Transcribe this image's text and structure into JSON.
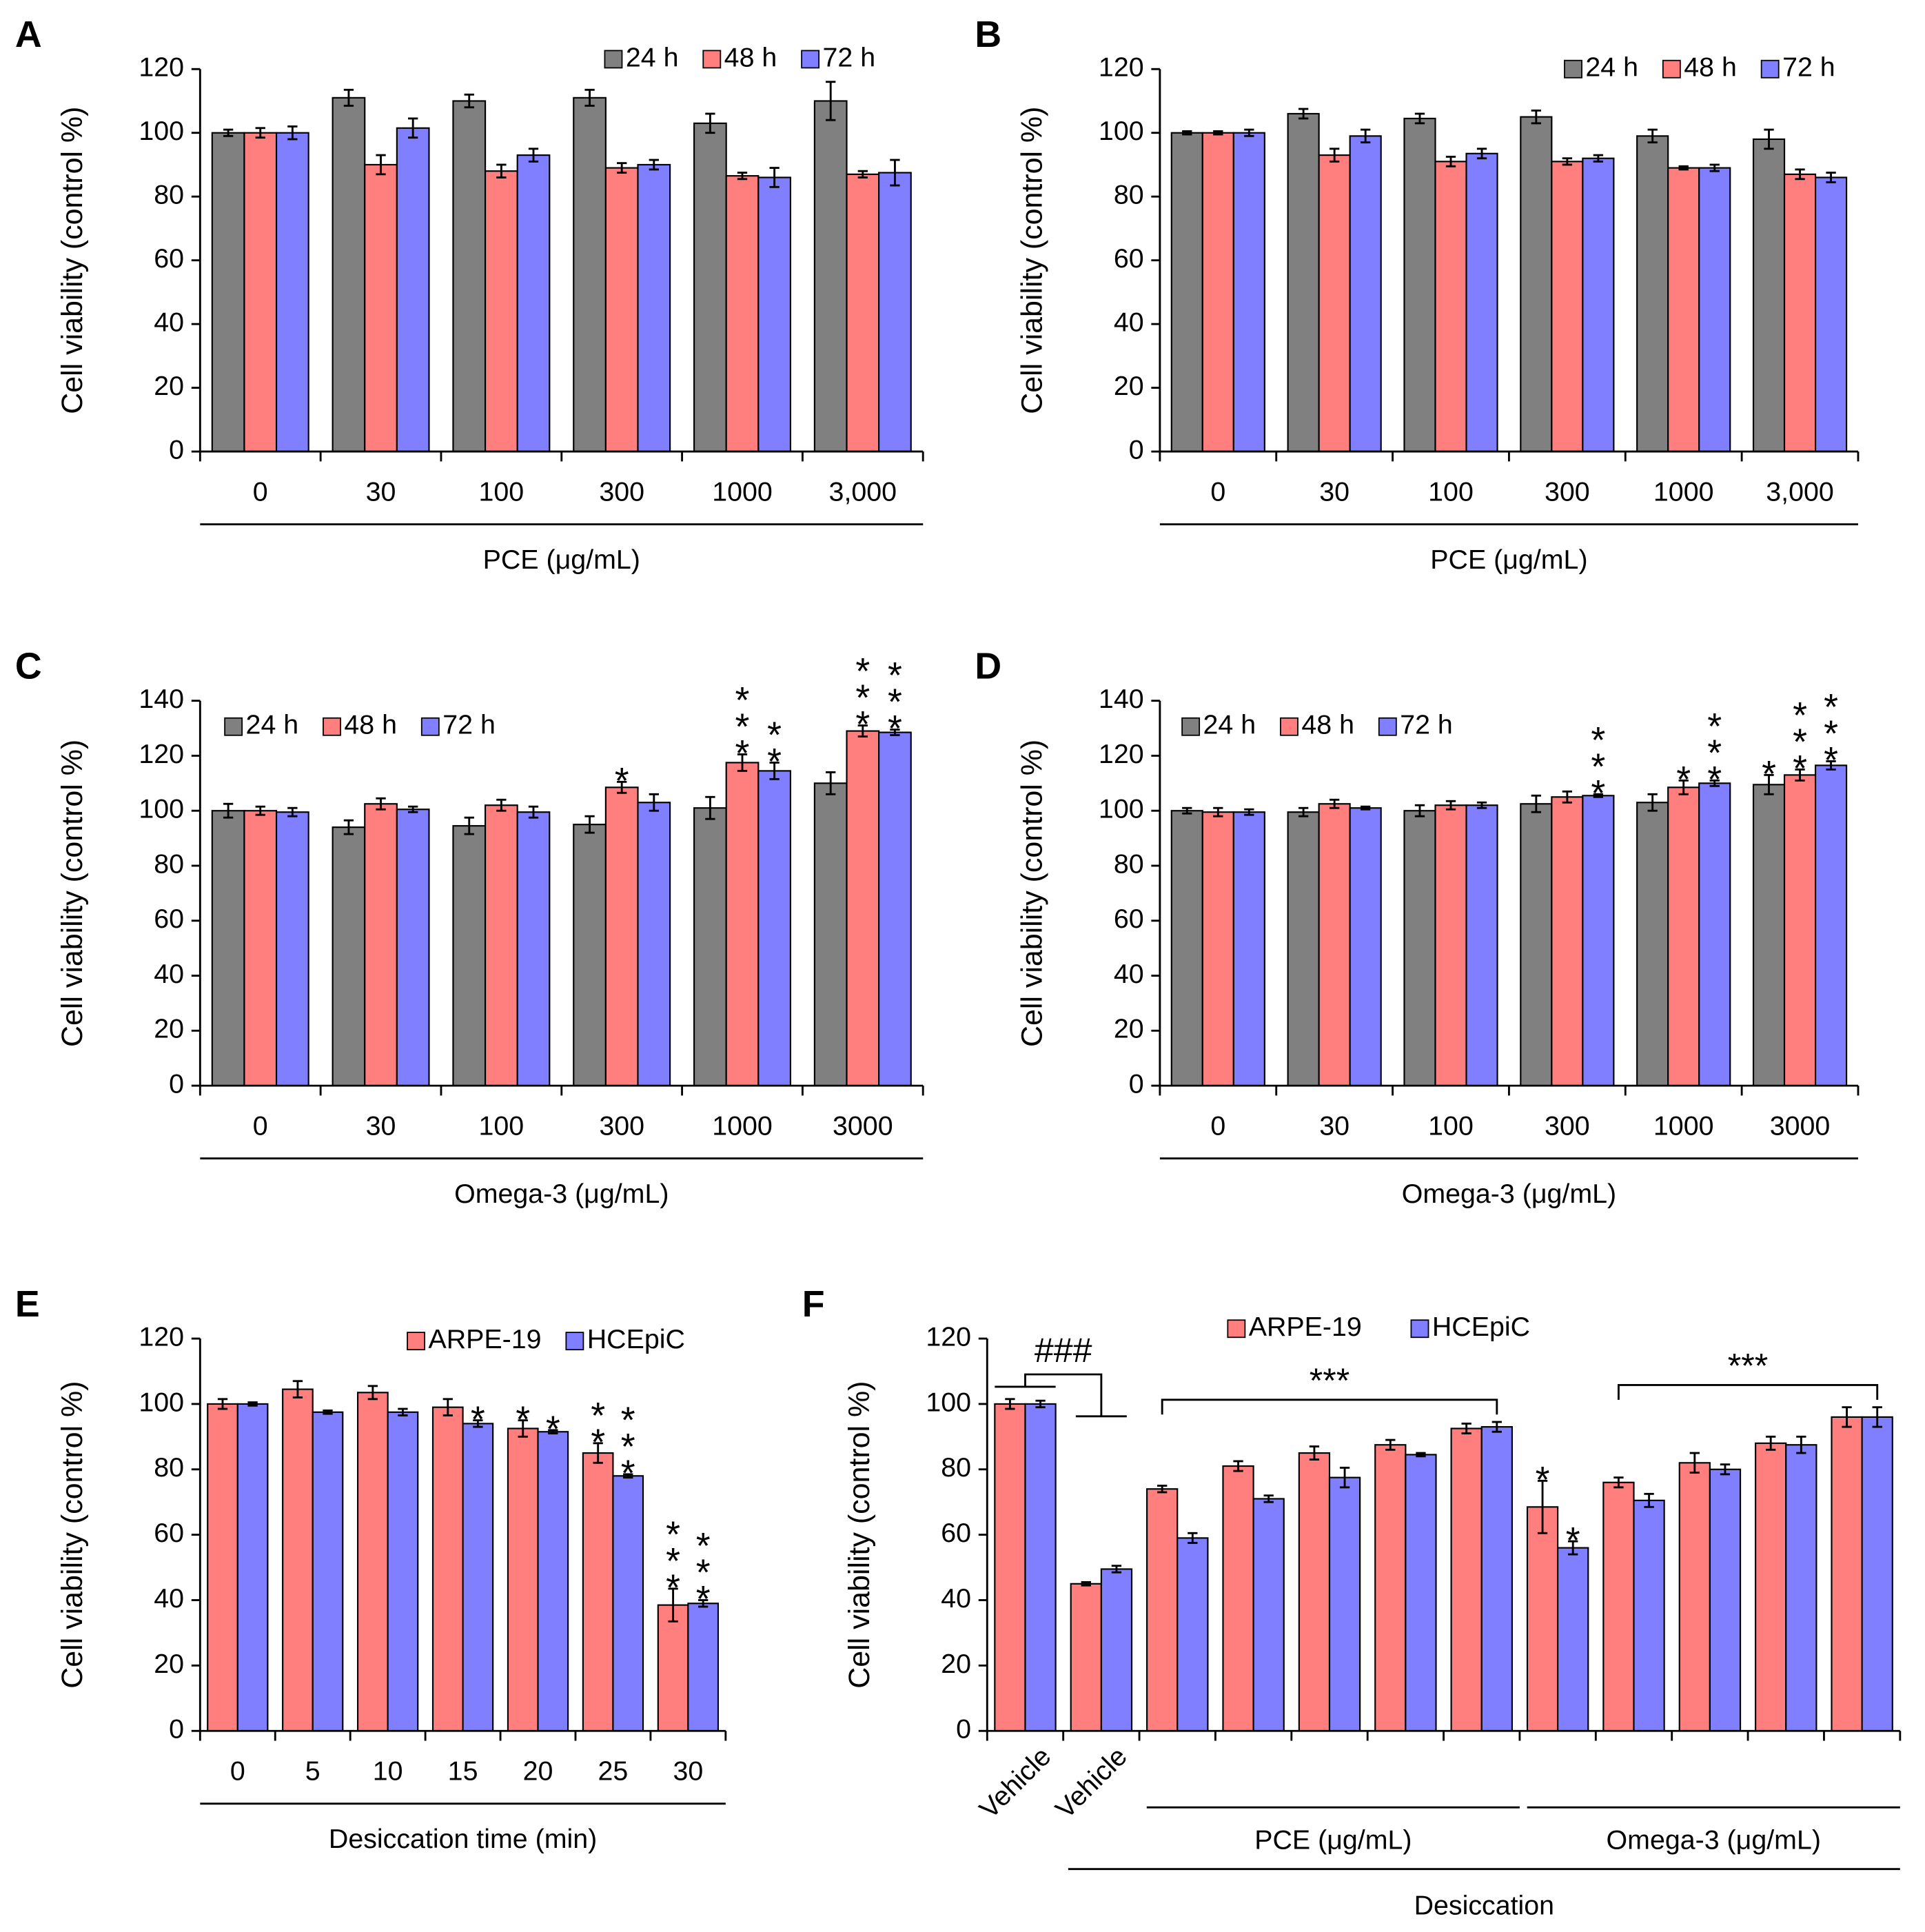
{
  "chart_data": [
    {
      "type": "bar",
      "panel": "A",
      "ylabel": "Cell viability (control %)",
      "xlabel": "PCE (μg/mL)",
      "legend": "upper right",
      "categories": [
        "0",
        "30",
        "100",
        "300",
        "1000",
        "3,000"
      ],
      "ylim": [
        0,
        120
      ],
      "yticks": [
        0,
        20,
        40,
        60,
        80,
        100,
        120
      ],
      "series": [
        {
          "name": "24 h",
          "color": "#808080",
          "values": [
            100,
            111,
            110,
            111,
            103,
            110
          ],
          "errors": [
            1,
            2.5,
            2,
            2.5,
            3,
            6
          ],
          "annotations": [
            null,
            null,
            null,
            null,
            null,
            null
          ]
        },
        {
          "name": "48 h",
          "color": "#ff7f7f",
          "values": [
            100,
            90,
            88,
            89,
            86.5,
            87
          ],
          "errors": [
            1.5,
            3,
            2,
            1.5,
            1,
            1
          ],
          "annotations": [
            null,
            null,
            null,
            null,
            null,
            null
          ]
        },
        {
          "name": "72 h",
          "color": "#7f7fff",
          "values": [
            100,
            101.5,
            93,
            90,
            86,
            87.5
          ],
          "errors": [
            2,
            3,
            2,
            1.5,
            3,
            4
          ],
          "annotations": [
            null,
            null,
            null,
            null,
            null,
            null
          ]
        }
      ]
    },
    {
      "type": "bar",
      "panel": "B",
      "ylabel": "Cell viability (control %)",
      "xlabel": "PCE (μg/mL)",
      "legend": "upper right",
      "categories": [
        "0",
        "30",
        "100",
        "300",
        "1000",
        "3,000"
      ],
      "ylim": [
        0,
        120
      ],
      "yticks": [
        0,
        20,
        40,
        60,
        80,
        100,
        120
      ],
      "series": [
        {
          "name": "24 h",
          "color": "#808080",
          "values": [
            100,
            106,
            104.5,
            105,
            99,
            98
          ],
          "errors": [
            0.5,
            1.5,
            1.5,
            2,
            2,
            3
          ],
          "annotations": [
            null,
            null,
            null,
            null,
            null,
            null
          ]
        },
        {
          "name": "48 h",
          "color": "#ff7f7f",
          "values": [
            100,
            93,
            91,
            91,
            89,
            87
          ],
          "errors": [
            0.5,
            2,
            1.5,
            1,
            0.5,
            1.5
          ],
          "annotations": [
            null,
            null,
            null,
            null,
            null,
            null
          ]
        },
        {
          "name": "72 h",
          "color": "#7f7fff",
          "values": [
            100,
            99,
            93.5,
            92,
            89,
            86
          ],
          "errors": [
            1,
            2,
            1.5,
            1,
            1,
            1.5
          ],
          "annotations": [
            null,
            null,
            null,
            null,
            null,
            null
          ]
        }
      ]
    },
    {
      "type": "bar",
      "panel": "C",
      "ylabel": "Cell viability (control %)",
      "xlabel": "Omega-3 (μg/mL)",
      "legend": "upper left",
      "categories": [
        "0",
        "30",
        "100",
        "300",
        "1000",
        "3000"
      ],
      "ylim": [
        0,
        140
      ],
      "yticks": [
        0,
        20,
        40,
        60,
        80,
        100,
        120,
        140
      ],
      "series": [
        {
          "name": "24 h",
          "color": "#808080",
          "values": [
            100,
            94,
            94.5,
            95,
            101,
            110
          ],
          "errors": [
            2.5,
            2.5,
            3,
            3,
            4,
            4
          ],
          "annotations": [
            null,
            null,
            null,
            null,
            null,
            null
          ]
        },
        {
          "name": "48 h",
          "color": "#ff7f7f",
          "values": [
            100,
            102.5,
            102,
            108.5,
            117.5,
            129
          ],
          "errors": [
            1.5,
            2,
            2,
            2,
            3,
            2
          ],
          "annotations": [
            null,
            null,
            null,
            "*",
            "***",
            "***"
          ]
        },
        {
          "name": "72 h",
          "color": "#7f7fff",
          "values": [
            99.5,
            100.5,
            99.5,
            103,
            114.5,
            128.5
          ],
          "errors": [
            1.5,
            1,
            2,
            3,
            3,
            1
          ],
          "annotations": [
            null,
            null,
            null,
            null,
            "**",
            "***"
          ]
        }
      ]
    },
    {
      "type": "bar",
      "panel": "D",
      "ylabel": "Cell viability (control %)",
      "xlabel": "Omega-3 (μg/mL)",
      "legend": "upper left",
      "categories": [
        "0",
        "30",
        "100",
        "300",
        "1000",
        "3000"
      ],
      "ylim": [
        0,
        140
      ],
      "yticks": [
        0,
        20,
        40,
        60,
        80,
        100,
        120,
        140
      ],
      "series": [
        {
          "name": "24 h",
          "color": "#808080",
          "values": [
            100,
            99.5,
            100,
            102.5,
            103,
            109.5
          ],
          "errors": [
            1,
            1.5,
            2,
            3,
            3,
            3.5
          ],
          "annotations": [
            null,
            null,
            null,
            null,
            null,
            "*"
          ]
        },
        {
          "name": "48 h",
          "color": "#ff7f7f",
          "values": [
            99.5,
            102.5,
            102,
            105,
            108.5,
            113
          ],
          "errors": [
            1.5,
            1.5,
            1.5,
            2,
            2.5,
            2
          ],
          "annotations": [
            null,
            null,
            null,
            null,
            "*",
            "***"
          ]
        },
        {
          "name": "72 h",
          "color": "#7f7fff",
          "values": [
            99.5,
            101,
            102,
            105.5,
            110,
            116.5
          ],
          "errors": [
            1,
            0.5,
            1,
            0.5,
            1,
            1.5
          ],
          "annotations": [
            null,
            null,
            null,
            "***",
            "***",
            "***"
          ]
        }
      ]
    },
    {
      "type": "bar",
      "panel": "E",
      "ylabel": "Cell viability (control %)",
      "xlabel": "Desiccation time (min)",
      "legend": "upper right",
      "categories": [
        "0",
        "5",
        "10",
        "15",
        "20",
        "25",
        "30"
      ],
      "ylim": [
        0,
        120
      ],
      "yticks": [
        0,
        20,
        40,
        60,
        80,
        100,
        120
      ],
      "series": [
        {
          "name": "ARPE-19",
          "color": "#ff7f7f",
          "values": [
            100,
            104.5,
            103.5,
            99,
            92.5,
            85,
            38.5
          ],
          "errors": [
            1.5,
            2.5,
            2,
            2.5,
            2.5,
            3,
            5
          ],
          "annotations": [
            null,
            null,
            null,
            null,
            "*",
            "**",
            "***"
          ]
        },
        {
          "name": "HCEpiC",
          "color": "#7f7fff",
          "values": [
            100,
            97.5,
            97.5,
            94,
            91.5,
            78,
            39
          ],
          "errors": [
            0.5,
            0.5,
            1,
            1,
            0.5,
            0.5,
            1
          ],
          "annotations": [
            null,
            null,
            null,
            "*",
            "*",
            "***",
            "***"
          ]
        }
      ]
    },
    {
      "type": "bar",
      "panel": "F",
      "ylabel": "Cell viability (control %)",
      "xlabel": "Desiccation",
      "xlabel_span": [
        1,
        11
      ],
      "legend": "upper center",
      "categories": [
        "Vehicle",
        "Vehicle",
        null,
        null,
        null,
        null,
        null,
        null,
        null,
        null,
        null,
        null
      ],
      "x_groups": [
        {
          "label": "PCE (μg/mL)",
          "span": [
            2,
            6
          ]
        },
        {
          "label": "Omega-3 (μg/mL)",
          "span": [
            7,
            11
          ]
        }
      ],
      "brackets": [
        {
          "label": "###",
          "span": [
            0,
            1
          ]
        },
        {
          "label": "***",
          "span": [
            2,
            6
          ]
        },
        {
          "label": "***",
          "span": [
            8,
            11
          ]
        }
      ],
      "ylim": [
        0,
        120
      ],
      "yticks": [
        0,
        20,
        40,
        60,
        80,
        100,
        120
      ],
      "series": [
        {
          "name": "ARPE-19",
          "color": "#ff7f7f",
          "values": [
            100,
            45,
            74,
            81,
            85,
            87.5,
            92.5,
            68.5,
            76,
            82,
            88,
            96
          ],
          "errors": [
            1.5,
            0.5,
            1,
            1.5,
            2,
            1.5,
            1.5,
            8,
            1.5,
            3,
            2,
            3
          ],
          "annotations": [
            null,
            null,
            null,
            null,
            null,
            null,
            null,
            "*",
            null,
            null,
            null,
            null
          ]
        },
        {
          "name": "HCEpiC",
          "color": "#7f7fff",
          "values": [
            100,
            49.5,
            59,
            71,
            77.5,
            84.5,
            93,
            56,
            70.5,
            80,
            87.5,
            96
          ],
          "errors": [
            1,
            1,
            1.5,
            1,
            3,
            0.5,
            1.5,
            2,
            2,
            1.5,
            2.5,
            3
          ],
          "annotations": [
            null,
            null,
            null,
            null,
            null,
            null,
            null,
            "*",
            null,
            null,
            null,
            null
          ]
        }
      ]
    }
  ]
}
